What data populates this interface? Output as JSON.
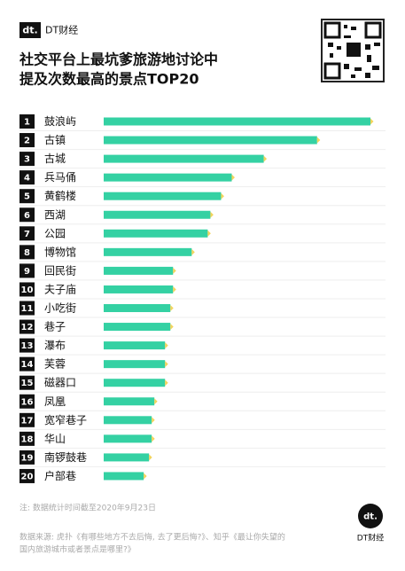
{
  "header": {
    "logo_mark": "dt.",
    "brand": "DT财经"
  },
  "chart_data": {
    "type": "hbar",
    "title": [
      "社交平台上最坑爹旅游地讨论中",
      "提及次数最高的景点TOP20"
    ],
    "ranks": [
      1,
      2,
      3,
      4,
      5,
      6,
      7,
      8,
      9,
      10,
      11,
      12,
      13,
      14,
      15,
      16,
      17,
      18,
      19,
      20
    ],
    "categories": [
      "鼓浪屿",
      "古镇",
      "古城",
      "兵马俑",
      "黄鹤楼",
      "西湖",
      "公园",
      "博物馆",
      "回民街",
      "夫子庙",
      "小吃街",
      "巷子",
      "瀑布",
      "芙蓉",
      "磁器口",
      "凤凰",
      "宽窄巷子",
      "华山",
      "南锣鼓巷",
      "户部巷"
    ],
    "values": [
      100,
      80,
      60,
      48,
      44,
      40,
      39,
      33,
      26,
      26,
      25,
      25,
      23,
      23,
      23,
      19,
      18,
      18,
      17,
      15
    ],
    "color": "#34d1a3",
    "note": "注: 数据统计时间截至2020年9月23日",
    "source": [
      "数据来源: 虎扑《有哪些地方不去后悔, 去了更后悔?》、知乎《最让你失望的",
      "国内旅游城市或者景点是哪里?》"
    ]
  },
  "footer": {
    "logo_mark": "dt.",
    "brand": "DT财经"
  }
}
